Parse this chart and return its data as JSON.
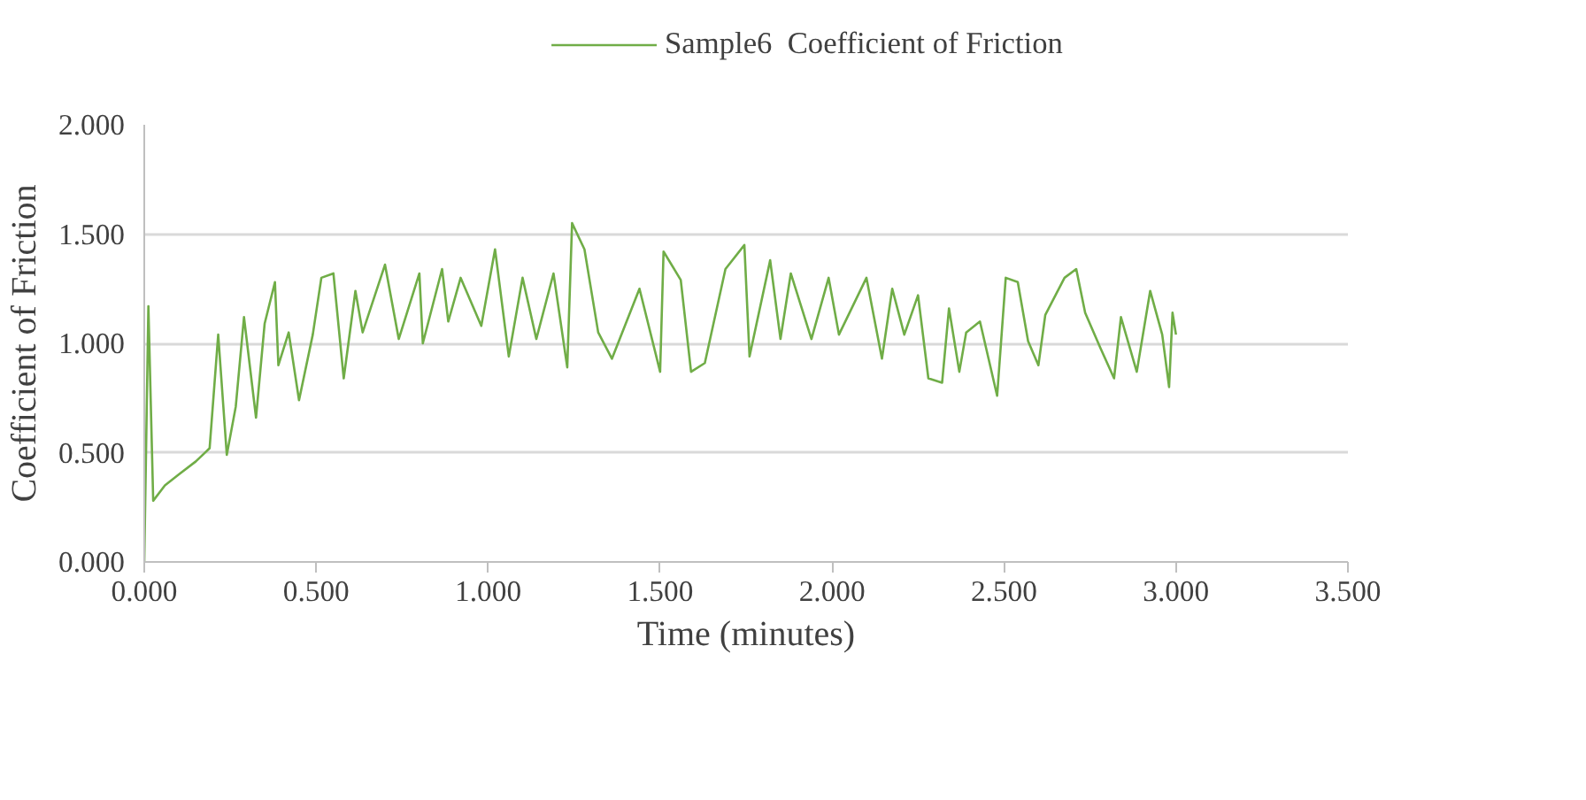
{
  "chart_data": {
    "type": "line",
    "xlabel": "Time (minutes)",
    "ylabel": "Coefficient of Friction",
    "legend": "top",
    "grid": "y",
    "marker": "none",
    "line_style": "solid",
    "xlim": [
      0,
      3.5
    ],
    "ylim": [
      0,
      2
    ],
    "xticks": [
      {
        "value": 0,
        "label": "0.000"
      },
      {
        "value": 0.5,
        "label": "0.500"
      },
      {
        "value": 1,
        "label": "1.000"
      },
      {
        "value": 1.5,
        "label": "1.500"
      },
      {
        "value": 2,
        "label": "2.000"
      },
      {
        "value": 2.5,
        "label": "2.500"
      },
      {
        "value": 3,
        "label": "3.000"
      },
      {
        "value": 3.5,
        "label": "3.500"
      }
    ],
    "yticks": [
      {
        "value": 0,
        "label": "0.000"
      },
      {
        "value": 0.5,
        "label": "0.500"
      },
      {
        "value": 1,
        "label": "1.000"
      },
      {
        "value": 1.5,
        "label": "1.500"
      },
      {
        "value": 2,
        "label": "2.000"
      }
    ],
    "series": [
      {
        "name": "Sample6  Coefficient of Friction",
        "color": "#70ad47",
        "x": [
          0,
          0.012,
          0.026,
          0.06,
          0.1,
          0.15,
          0.19,
          0.215,
          0.24,
          0.266,
          0.29,
          0.325,
          0.35,
          0.38,
          0.39,
          0.42,
          0.45,
          0.49,
          0.515,
          0.55,
          0.58,
          0.614,
          0.635,
          0.7,
          0.74,
          0.8,
          0.81,
          0.866,
          0.884,
          0.92,
          0.98,
          1.02,
          1.06,
          1.1,
          1.14,
          1.19,
          1.23,
          1.244,
          1.28,
          1.32,
          1.36,
          1.44,
          1.5,
          1.51,
          1.56,
          1.59,
          1.63,
          1.69,
          1.745,
          1.76,
          1.82,
          1.85,
          1.88,
          1.94,
          1.99,
          2.02,
          2.1,
          2.145,
          2.175,
          2.21,
          2.25,
          2.28,
          2.32,
          2.34,
          2.37,
          2.39,
          2.43,
          2.48,
          2.505,
          2.54,
          2.57,
          2.6,
          2.62,
          2.676,
          2.71,
          2.736,
          2.78,
          2.82,
          2.84,
          2.886,
          2.925,
          2.96,
          2.98,
          2.99,
          3.0
        ],
        "values": [
          0,
          1.17,
          0.28,
          0.35,
          0.4,
          0.46,
          0.52,
          1.04,
          0.49,
          0.71,
          1.12,
          0.66,
          1.09,
          1.28,
          0.9,
          1.05,
          0.74,
          1.04,
          1.3,
          1.32,
          0.84,
          1.24,
          1.05,
          1.36,
          1.02,
          1.32,
          1.0,
          1.34,
          1.1,
          1.3,
          1.08,
          1.43,
          0.94,
          1.3,
          1.02,
          1.32,
          0.89,
          1.55,
          1.43,
          1.05,
          0.93,
          1.25,
          0.87,
          1.42,
          1.29,
          0.87,
          0.91,
          1.34,
          1.45,
          0.94,
          1.38,
          1.02,
          1.32,
          1.02,
          1.3,
          1.04,
          1.3,
          0.93,
          1.25,
          1.04,
          1.22,
          0.84,
          0.82,
          1.16,
          0.87,
          1.05,
          1.1,
          0.76,
          1.3,
          1.28,
          1.01,
          0.9,
          1.13,
          1.3,
          1.34,
          1.14,
          0.98,
          0.84,
          1.12,
          0.87,
          1.24,
          1.04,
          0.8,
          1.14,
          1.04
        ]
      }
    ]
  }
}
